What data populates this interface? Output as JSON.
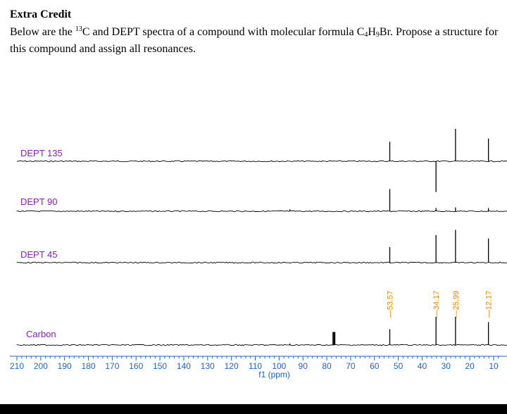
{
  "heading": "Extra Credit",
  "paragraph": {
    "intro": "Below are the ",
    "isotope_mass": "13",
    "after_isotope": "C and DEPT spectra of a compound with molecular formula C",
    "carbon_count": "4",
    "between_counts": "H",
    "hydrogen_count": "9",
    "after_formula": "Br.  Propose a structure for",
    "line2": "this compound and assign all resonances."
  },
  "colors": {
    "label": "#8B1FBF",
    "axis": "#2563C9",
    "peak_label": "#E8890C",
    "trace": "#000000"
  },
  "chart_data": {
    "type": "line",
    "title": "",
    "xlabel": "f1 (ppm)",
    "ylabel": "",
    "xlim": [
      210,
      8
    ],
    "x_ticks": [
      210,
      200,
      190,
      180,
      170,
      160,
      150,
      140,
      130,
      120,
      110,
      100,
      90,
      80,
      70,
      60,
      50,
      40,
      30,
      20,
      10
    ],
    "peak_labels": [
      "53.57",
      "34.17",
      "25.99",
      "12.17"
    ],
    "spectra": [
      {
        "name": "DEPT 135",
        "peaks": [
          {
            "ppm": 53.57,
            "height": 0.6
          },
          {
            "ppm": 25.99,
            "height": 1.0
          },
          {
            "ppm": 12.17,
            "height": 0.7
          },
          {
            "ppm": 34.17,
            "height": -0.95
          }
        ]
      },
      {
        "name": "DEPT 90",
        "peaks": [
          {
            "ppm": 53.57,
            "height": 0.7
          },
          {
            "ppm": 34.17,
            "height": 0.1
          },
          {
            "ppm": 25.99,
            "height": 0.12
          },
          {
            "ppm": 12.17,
            "height": 0.1
          },
          {
            "ppm": 95.5,
            "height": 0.06
          }
        ]
      },
      {
        "name": "DEPT 45",
        "peaks": [
          {
            "ppm": 53.57,
            "height": 0.45
          },
          {
            "ppm": 34.17,
            "height": 0.8
          },
          {
            "ppm": 25.99,
            "height": 0.95
          },
          {
            "ppm": 12.17,
            "height": 0.7
          }
        ]
      },
      {
        "name": "Carbon",
        "peaks": [
          {
            "ppm": 77.4,
            "height": 0.37
          },
          {
            "ppm": 77.0,
            "height": 0.37
          },
          {
            "ppm": 76.6,
            "height": 0.37
          },
          {
            "ppm": 53.57,
            "height": 0.45
          },
          {
            "ppm": 34.17,
            "height": 0.8
          },
          {
            "ppm": 25.99,
            "height": 0.8
          },
          {
            "ppm": 12.17,
            "height": 0.65
          },
          {
            "ppm": 95.5,
            "height": 0.04
          }
        ]
      }
    ]
  }
}
